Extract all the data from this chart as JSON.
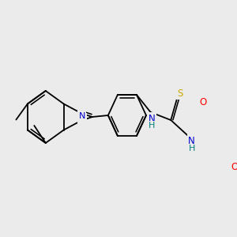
{
  "bg_color": "#ebebeb",
  "bond_color": "#000000",
  "atom_colors": {
    "N": "#0000cc",
    "O": "#ff0000",
    "S": "#ccaa00",
    "NH": "#008080",
    "C": "#000000"
  },
  "lw": 1.3,
  "lw_inner": 1.1
}
